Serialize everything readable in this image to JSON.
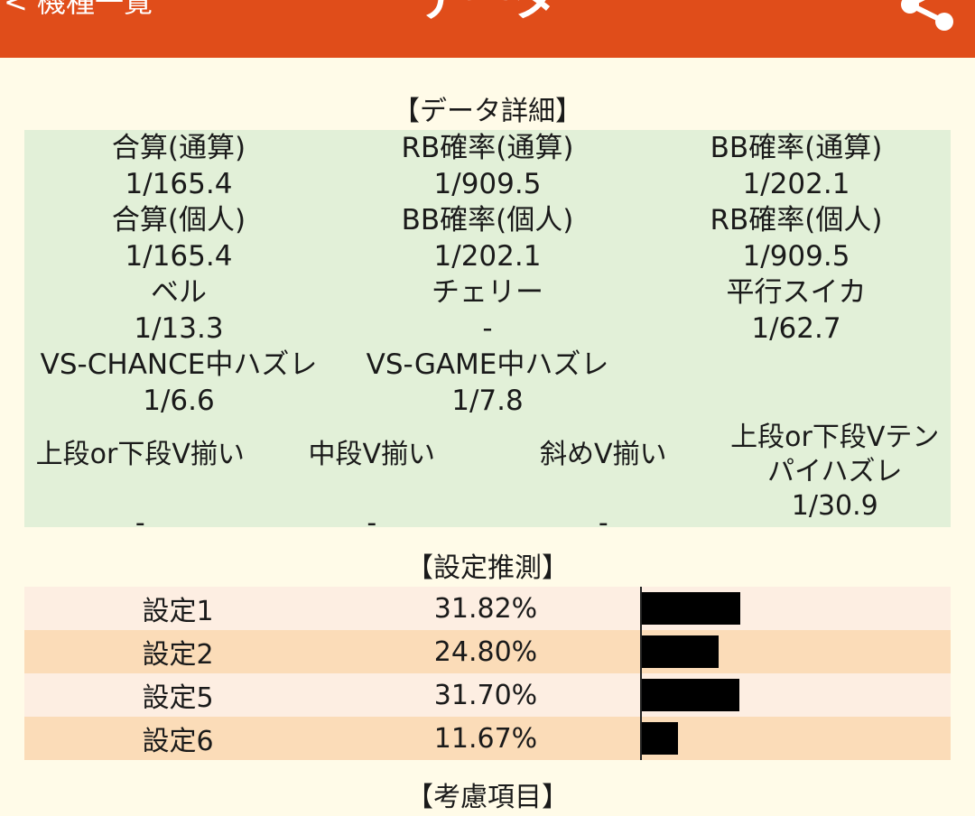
{
  "header": {
    "back_label": "< 機種一覧",
    "title": "データ",
    "share_icon": "share-icon",
    "bar_color": "#e04d1a"
  },
  "detail": {
    "title": "【データ詳細】",
    "rows": [
      [
        {
          "label": "合算(通算)",
          "value": "1/165.4"
        },
        {
          "label": "RB確率(通算)",
          "value": "1/909.5"
        },
        {
          "label": "BB確率(通算)",
          "value": "1/202.1"
        }
      ],
      [
        {
          "label": "合算(個人)",
          "value": "1/165.4"
        },
        {
          "label": "BB確率(個人)",
          "value": "1/202.1"
        },
        {
          "label": "RB確率(個人)",
          "value": "1/909.5"
        }
      ],
      [
        {
          "label": "ベル",
          "value": "1/13.3"
        },
        {
          "label": "チェリー",
          "value": "-"
        },
        {
          "label": "平行スイカ",
          "value": "1/62.7"
        }
      ],
      [
        {
          "label": "VS-CHANCE中ハズレ",
          "value": "1/6.6"
        },
        {
          "label": "VS-GAME中ハズレ",
          "value": "1/7.8"
        },
        {
          "label": "",
          "value": ""
        }
      ],
      [
        {
          "label": "上段or下段V揃い",
          "value": "-"
        },
        {
          "label": "中段V揃い",
          "value": "-"
        },
        {
          "label": "斜めV揃い",
          "value": "-"
        },
        {
          "label": "上段or下段Vテン",
          "label2": "パイハズレ",
          "value": "1/30.9"
        }
      ]
    ],
    "panel_color": "#e2f0d8"
  },
  "guess": {
    "title": "【設定推測】",
    "rows": [
      {
        "name": "設定1",
        "pct": "31.82%",
        "ratio": 0.3182
      },
      {
        "name": "設定2",
        "pct": "24.80%",
        "ratio": 0.248
      },
      {
        "name": "設定5",
        "pct": "31.70%",
        "ratio": 0.317
      },
      {
        "name": "設定6",
        "pct": "11.67%",
        "ratio": 0.1167
      }
    ]
  },
  "next_section": {
    "title": "【考慮項目】"
  }
}
